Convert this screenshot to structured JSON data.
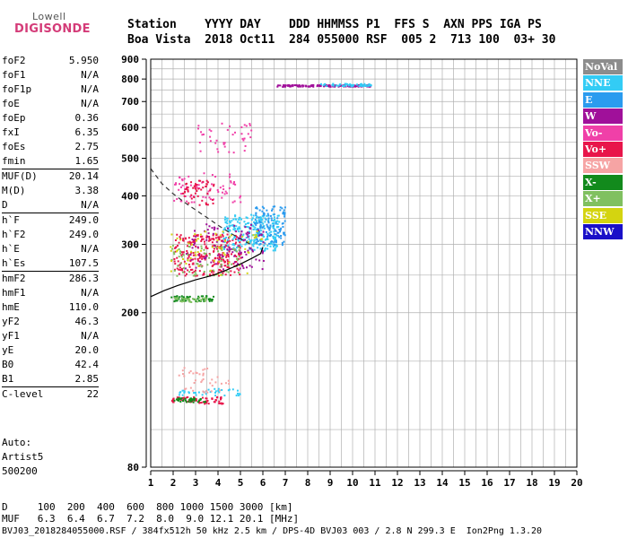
{
  "logo": {
    "line1": "Lowell",
    "line2": "DIGISONDE"
  },
  "header": {
    "row1": "Station    YYYY DAY    DDD HHMMSS P1  FFS S  AXN PPS IGA PS",
    "row2": "Boa Vista  2018 Oct11  284 055000 RSF  005 2  713 100  03+ 30"
  },
  "params": [
    {
      "name": "foF2",
      "value": "5.950"
    },
    {
      "name": "foF1",
      "value": "N/A"
    },
    {
      "name": "foF1p",
      "value": "N/A"
    },
    {
      "name": "foE",
      "value": "N/A"
    },
    {
      "name": "foEp",
      "value": "0.36"
    },
    {
      "name": "fxI",
      "value": "6.35"
    },
    {
      "name": "foEs",
      "value": "2.75"
    },
    {
      "name": "fmin",
      "value": "1.65"
    },
    {
      "sep": true
    },
    {
      "name": "MUF(D)",
      "value": "20.14"
    },
    {
      "name": "M(D)",
      "value": "3.38"
    },
    {
      "name": "D",
      "value": "N/A"
    },
    {
      "sep": true
    },
    {
      "name": "h`F",
      "value": "249.0"
    },
    {
      "name": "h`F2",
      "value": "249.0"
    },
    {
      "name": "h`E",
      "value": "N/A"
    },
    {
      "name": "h`Es",
      "value": "107.5"
    },
    {
      "sep": true
    },
    {
      "name": "hmF2",
      "value": "286.3"
    },
    {
      "name": "hmF1",
      "value": "N/A"
    },
    {
      "name": "hmE",
      "value": "110.0"
    },
    {
      "name": "yF2",
      "value": "46.3"
    },
    {
      "name": "yF1",
      "value": "N/A"
    },
    {
      "name": "yE",
      "value": "20.0"
    },
    {
      "name": "B0",
      "value": "42.4"
    },
    {
      "name": "B1",
      "value": "2.85"
    },
    {
      "sep": true
    },
    {
      "name": "C-level",
      "value": "22"
    }
  ],
  "auto": {
    "line1": "Auto:",
    "line2": "Artist5",
    "line3": "500200"
  },
  "legend": [
    {
      "label": "NoVal",
      "color": "#8c8c8c"
    },
    {
      "label": "NNE",
      "color": "#33ccf5"
    },
    {
      "label": "E",
      "color": "#2a9bef"
    },
    {
      "label": "W",
      "color": "#a0109a"
    },
    {
      "label": "Vo-",
      "color": "#f040a8"
    },
    {
      "label": "Vo+",
      "color": "#e8154a"
    },
    {
      "label": "SSW",
      "color": "#f6a4a4"
    },
    {
      "label": "X-",
      "color": "#128a1c"
    },
    {
      "label": "X+",
      "color": "#80c060"
    },
    {
      "label": "SSE",
      "color": "#d4d410"
    },
    {
      "label": "NNW",
      "color": "#1a10c8"
    }
  ],
  "bottom": {
    "line1": "D     100  200  400  600  800 1000 1500 3000 [km]",
    "line2": "MUF   6.3  6.4  6.7  7.2  8.0  9.0 12.1 20.1 [MHz]",
    "line3": "BVJ03_2018284055000.RSF / 384fx512h 50 kHz 2.5 km / DPS-4D BVJ03 003 / 2.8 N 299.3 E  Ion2Png 1.3.20"
  },
  "chart_data": {
    "type": "scatter",
    "title": "",
    "xlabel": "",
    "ylabel": "",
    "xlim": [
      1,
      20
    ],
    "ylim": [
      80,
      900
    ],
    "x_ticks": [
      1,
      2,
      3,
      4,
      5,
      6,
      7,
      8,
      9,
      10,
      11,
      12,
      13,
      14,
      15,
      16,
      17,
      18,
      19,
      20
    ],
    "y_ticks": [
      80,
      200,
      300,
      400,
      500,
      600,
      700,
      800,
      900
    ],
    "y_scale": "log",
    "grid": true,
    "profile_curve": [
      [
        1.0,
        220
      ],
      [
        1.6,
        228
      ],
      [
        2.2,
        235
      ],
      [
        3.0,
        243
      ],
      [
        3.8,
        250
      ],
      [
        4.4,
        258
      ],
      [
        5.0,
        267
      ],
      [
        5.5,
        276
      ],
      [
        5.9,
        284
      ],
      [
        6.0,
        295
      ]
    ],
    "dashed_curve": [
      [
        1.0,
        470
      ],
      [
        1.5,
        430
      ],
      [
        2.0,
        405
      ],
      [
        2.5,
        385
      ],
      [
        3.0,
        368
      ],
      [
        3.5,
        352
      ],
      [
        4.0,
        336
      ],
      [
        4.5,
        322
      ],
      [
        5.0,
        310
      ],
      [
        5.5,
        299
      ]
    ],
    "clusters": [
      {
        "series": "Vo+",
        "x": [
          2.0,
          5.0
        ],
        "y": [
          250,
          320
        ],
        "n": 260
      },
      {
        "series": "NNE",
        "x": [
          4.2,
          6.7
        ],
        "y": [
          290,
          360
        ],
        "n": 260
      },
      {
        "series": "E",
        "x": [
          5.6,
          7.0
        ],
        "y": [
          300,
          380
        ],
        "n": 120
      },
      {
        "series": "W",
        "x": [
          2.5,
          6.0
        ],
        "y": [
          260,
          340
        ],
        "n": 110
      },
      {
        "series": "X-",
        "x": [
          1.8,
          3.8
        ],
        "y": [
          215,
          222
        ],
        "n": 60
      },
      {
        "series": "X+",
        "x": [
          1.8,
          5.0
        ],
        "y": [
          250,
          300
        ],
        "n": 70
      },
      {
        "series": "SSE",
        "x": [
          1.8,
          6.0
        ],
        "y": [
          250,
          330
        ],
        "n": 60
      },
      {
        "series": "Vo-",
        "x": [
          2.0,
          5.0
        ],
        "y": [
          380,
          460
        ],
        "n": 70
      },
      {
        "series": "Vo+",
        "x": [
          2.4,
          3.8
        ],
        "y": [
          380,
          440
        ],
        "n": 50
      },
      {
        "series": "W",
        "x": [
          6.6,
          10.8
        ],
        "y": [
          768,
          776
        ],
        "n": 140
      },
      {
        "series": "NNE",
        "x": [
          8.5,
          10.8
        ],
        "y": [
          770,
          782
        ],
        "n": 60
      },
      {
        "series": "Vo-",
        "x": [
          3.0,
          5.5
        ],
        "y": [
          510,
          620
        ],
        "n": 40
      },
      {
        "series": "Vo+",
        "x": [
          1.9,
          4.2
        ],
        "y": [
          117,
          122
        ],
        "n": 70
      },
      {
        "series": "X-",
        "x": [
          1.9,
          3.4
        ],
        "y": [
          118,
          121
        ],
        "n": 40
      },
      {
        "series": "NNE",
        "x": [
          2.2,
          5.0
        ],
        "y": [
          123,
          128
        ],
        "n": 40
      },
      {
        "series": "SSW",
        "x": [
          2.0,
          4.5
        ],
        "y": [
          125,
          145
        ],
        "n": 40
      },
      {
        "series": "X+",
        "x": [
          2.0,
          3.5
        ],
        "y": [
          214,
          220
        ],
        "n": 30
      }
    ]
  }
}
